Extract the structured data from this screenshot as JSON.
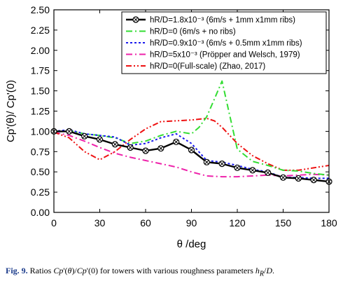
{
  "chart_data": {
    "type": "line",
    "xlabel": "θ /deg",
    "ylabel": "Cp'(θ)/ Cp'(0)",
    "xlim": [
      0,
      180
    ],
    "ylim": [
      0.0,
      2.5
    ],
    "xticks": [
      0,
      30,
      60,
      90,
      120,
      150,
      180
    ],
    "yticks": [
      0.0,
      0.25,
      0.5,
      0.75,
      1.0,
      1.25,
      1.5,
      1.75,
      2.0,
      2.25,
      2.5
    ],
    "xtick_labels": [
      "0",
      "30",
      "60",
      "90",
      "120",
      "150",
      "180"
    ],
    "ytick_labels": [
      "0.00",
      "0.25",
      "0.50",
      "0.75",
      "1.00",
      "1.25",
      "1.50",
      "1.75",
      "2.00",
      "2.25",
      "2.50"
    ],
    "legend_position": "top-right",
    "series": [
      {
        "name": "hR/D=1.8x10-3",
        "legend_label": "hR/D=1.8x10⁻³ (6m/s + 1mm x1mm ribs)",
        "color": "#000000",
        "style": "solid-marker",
        "marker": "circle-x",
        "x": [
          0,
          10,
          20,
          30,
          40,
          50,
          60,
          70,
          80,
          90,
          100,
          110,
          120,
          130,
          140,
          150,
          160,
          170,
          180
        ],
        "y": [
          1.0,
          1.0,
          0.94,
          0.9,
          0.84,
          0.8,
          0.76,
          0.79,
          0.87,
          0.77,
          0.62,
          0.6,
          0.55,
          0.52,
          0.49,
          0.43,
          0.42,
          0.4,
          0.38
        ]
      },
      {
        "name": "hR/D=0",
        "legend_label": "hR/D=0 (6m/s + no ribs)",
        "color": "#33dd33",
        "style": "dash-dot",
        "x": [
          0,
          10,
          20,
          30,
          40,
          50,
          60,
          70,
          80,
          90,
          95,
          100,
          105,
          110,
          115,
          120,
          130,
          140,
          150,
          160,
          170,
          180
        ],
        "y": [
          1.0,
          1.01,
          0.97,
          0.95,
          0.92,
          0.85,
          0.88,
          0.95,
          1.0,
          0.97,
          1.05,
          1.18,
          1.4,
          1.62,
          1.2,
          0.78,
          0.63,
          0.58,
          0.52,
          0.51,
          0.48,
          0.46
        ]
      },
      {
        "name": "hR/D=0.9x10-3",
        "legend_label": "hR/D=0.9x10⁻³ (6m/s + 0.5mm x1mm ribs)",
        "color": "#1a1aee",
        "style": "dotted",
        "x": [
          0,
          10,
          20,
          30,
          40,
          50,
          60,
          70,
          80,
          90,
          100,
          110,
          120,
          130,
          140,
          150,
          160,
          170,
          180
        ],
        "y": [
          1.0,
          1.02,
          0.97,
          0.95,
          0.93,
          0.83,
          0.85,
          0.92,
          0.97,
          0.85,
          0.64,
          0.62,
          0.58,
          0.53,
          0.5,
          0.43,
          0.43,
          0.42,
          0.42
        ]
      },
      {
        "name": "hR/D=5x10-3",
        "legend_label": "hR/D=5x10⁻³ (Pröpper and Welsch, 1979)",
        "color": "#ee22aa",
        "style": "dash-dot",
        "x": [
          0,
          10,
          20,
          30,
          40,
          50,
          60,
          70,
          80,
          90,
          100,
          110,
          120,
          130,
          140,
          150,
          160,
          170,
          180
        ],
        "y": [
          0.99,
          0.95,
          0.88,
          0.8,
          0.73,
          0.68,
          0.64,
          0.6,
          0.56,
          0.5,
          0.45,
          0.44,
          0.44,
          0.45,
          0.46,
          0.45,
          0.46,
          0.47,
          0.46
        ]
      },
      {
        "name": "hR/D=0(Full-scale)",
        "legend_label": "hR/D=0(Full-scale) (Zhao, 2017)",
        "color": "#ee1111",
        "style": "dash-dot-dot",
        "x": [
          0,
          10,
          20,
          30,
          40,
          50,
          60,
          70,
          80,
          90,
          100,
          105,
          110,
          120,
          130,
          140,
          150,
          160,
          170,
          180
        ],
        "y": [
          0.99,
          0.92,
          0.75,
          0.65,
          0.75,
          0.9,
          1.03,
          1.12,
          1.13,
          1.14,
          1.16,
          1.13,
          1.05,
          0.85,
          0.7,
          0.6,
          0.52,
          0.52,
          0.55,
          0.58
        ]
      }
    ]
  },
  "caption": {
    "label": "Fig. 9.",
    "text": "Ratios Cp'(θ)/Cp'(0) for towers with various roughness parameters hR/D."
  }
}
